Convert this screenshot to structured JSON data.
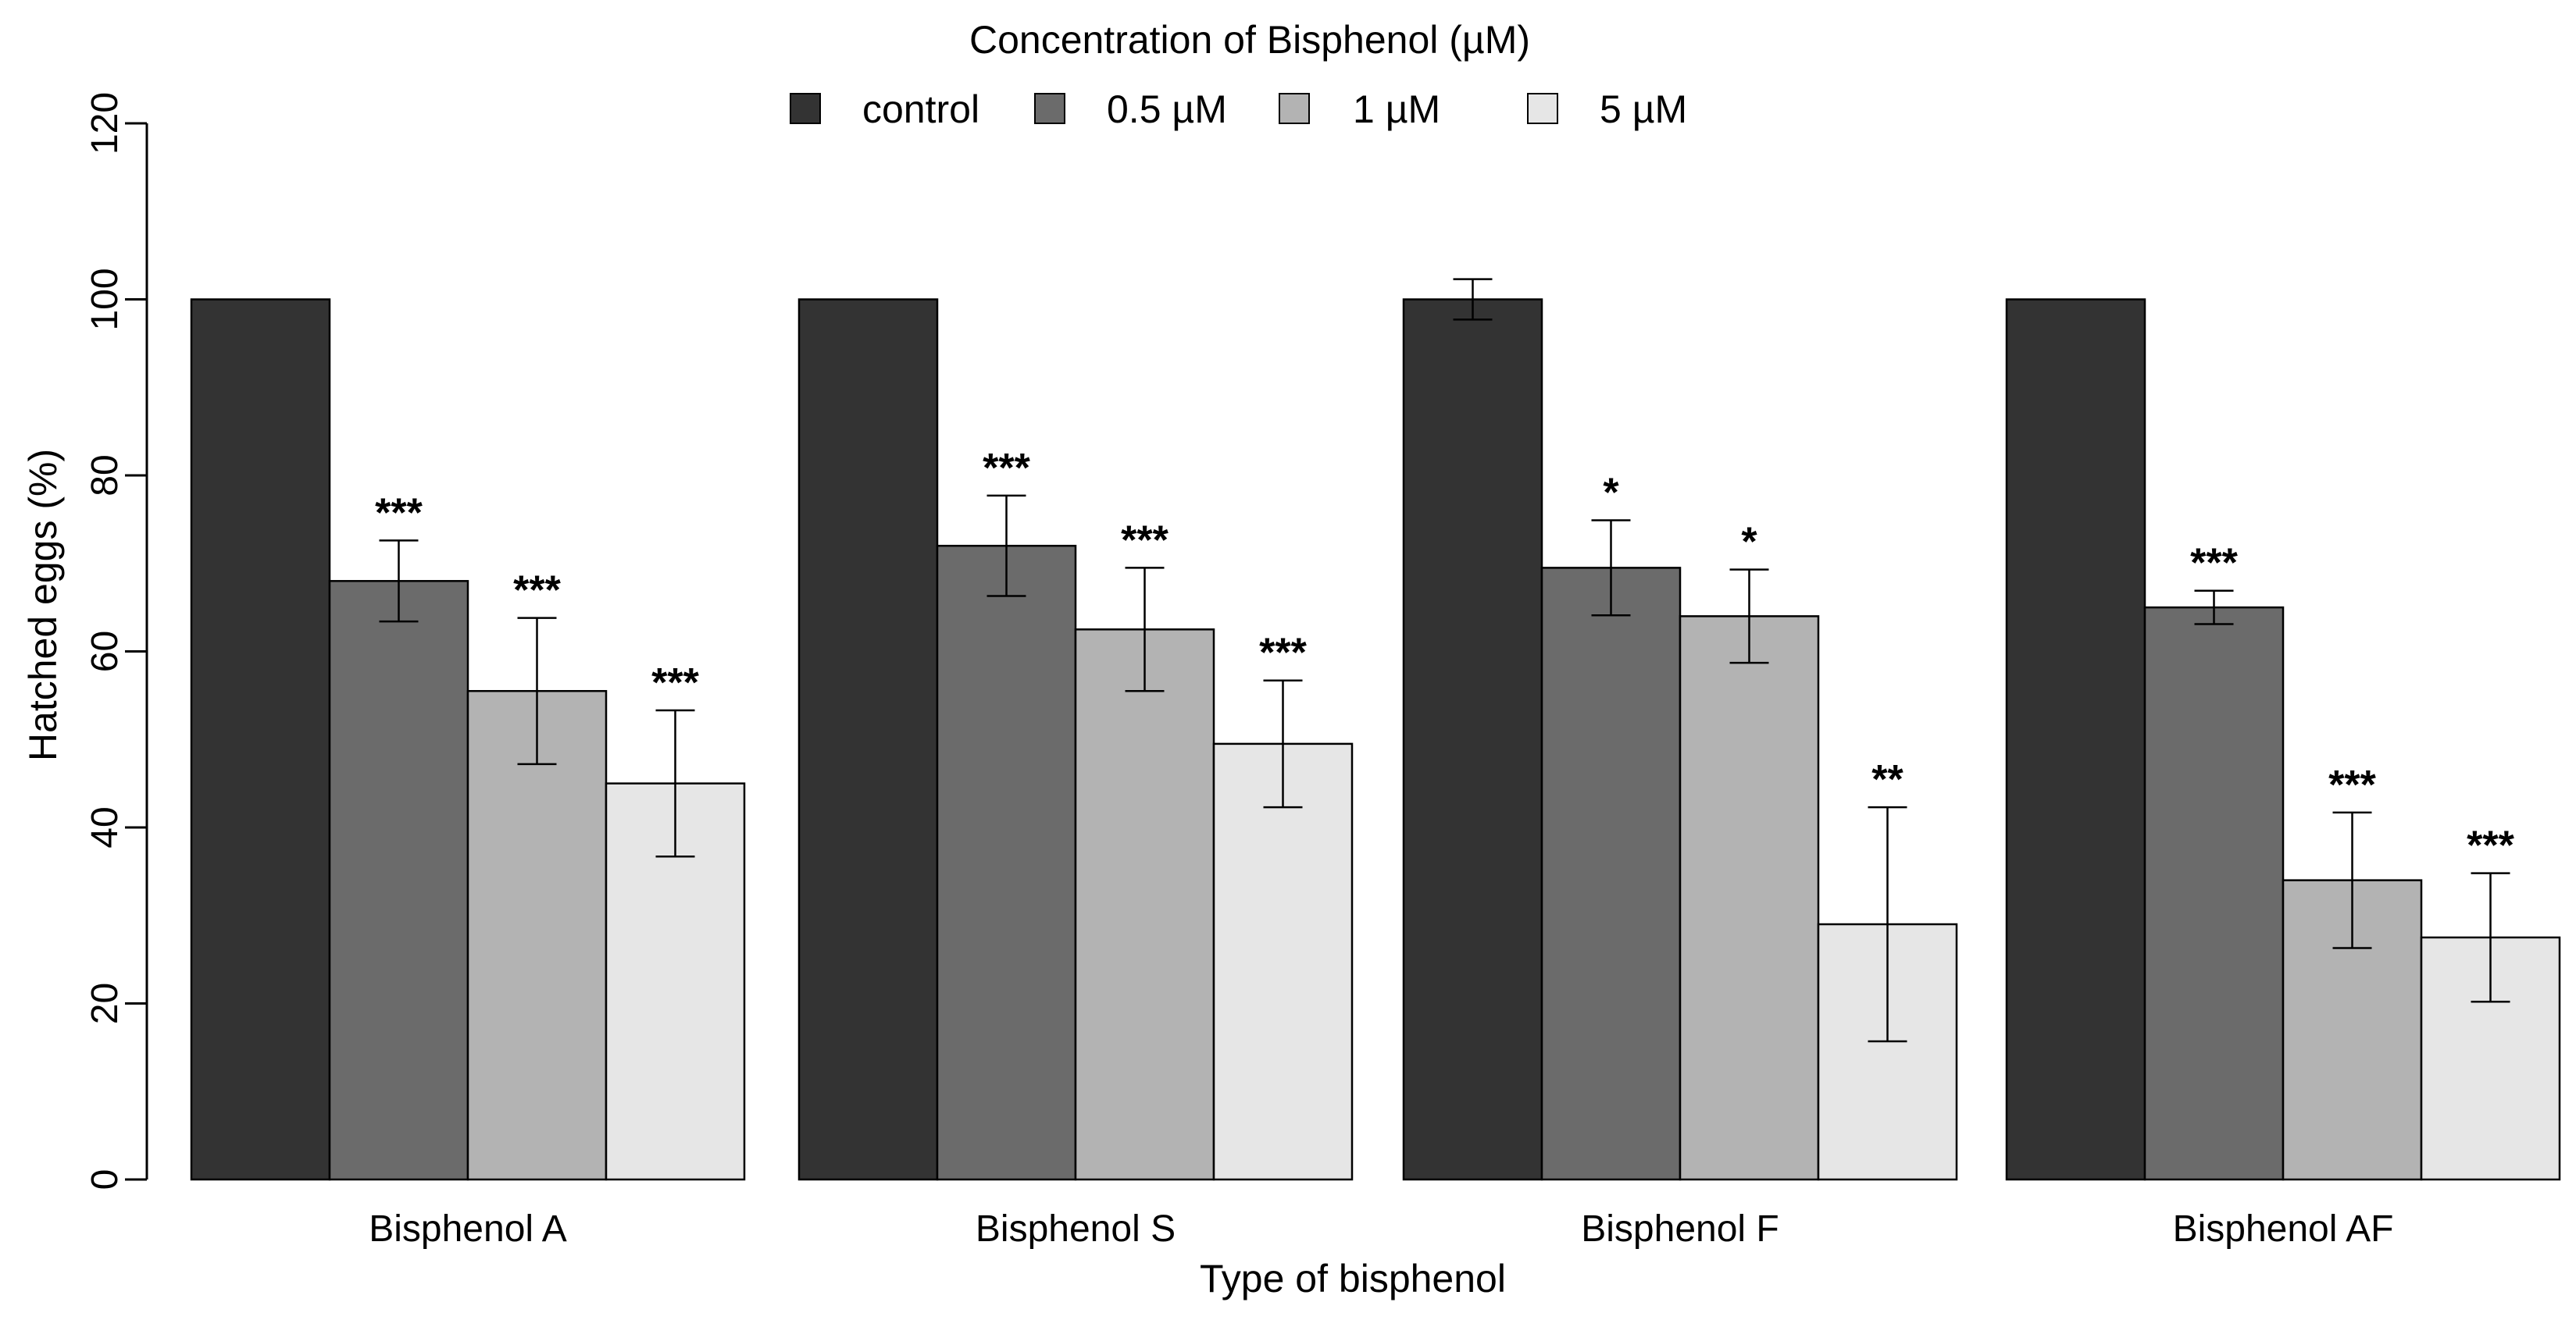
{
  "chart_data": {
    "type": "bar",
    "title": "",
    "xlabel": "Type of bisphenol",
    "ylabel": "Hatched eggs (%)",
    "ylim": [
      0,
      120
    ],
    "yticks": [
      0,
      20,
      40,
      60,
      80,
      100,
      120
    ],
    "grid": false,
    "legend": {
      "title": "Concentration of Bisphenol (µM)",
      "placement": "top-center"
    },
    "categories": [
      "Bisphenol A",
      "Bisphenol S",
      "Bisphenol F",
      "Bisphenol AF"
    ],
    "series": [
      {
        "name": "control",
        "color": "#333333",
        "values": [
          100,
          100,
          100,
          100
        ],
        "errors": [
          null,
          null,
          2.3,
          null
        ],
        "significance": [
          "",
          "",
          "",
          ""
        ]
      },
      {
        "name": "0.5 µM",
        "color": "#6b6b6b",
        "values": [
          68,
          72,
          69.5,
          65
        ],
        "errors": [
          4.6,
          5.7,
          5.4,
          1.9
        ],
        "significance": [
          "***",
          "***",
          "*",
          "***"
        ]
      },
      {
        "name": "1 µM",
        "color": "#b3b3b3",
        "values": [
          55.5,
          62.5,
          64,
          34
        ],
        "errors": [
          8.3,
          7.0,
          5.3,
          7.7
        ],
        "significance": [
          "***",
          "***",
          "*",
          "***"
        ]
      },
      {
        "name": "5 µM",
        "color": "#e6e6e6",
        "values": [
          45,
          49.5,
          29,
          27.5
        ],
        "errors": [
          8.3,
          7.2,
          13.3,
          7.3
        ],
        "significance": [
          "***",
          "***",
          "**",
          "***"
        ]
      }
    ]
  }
}
